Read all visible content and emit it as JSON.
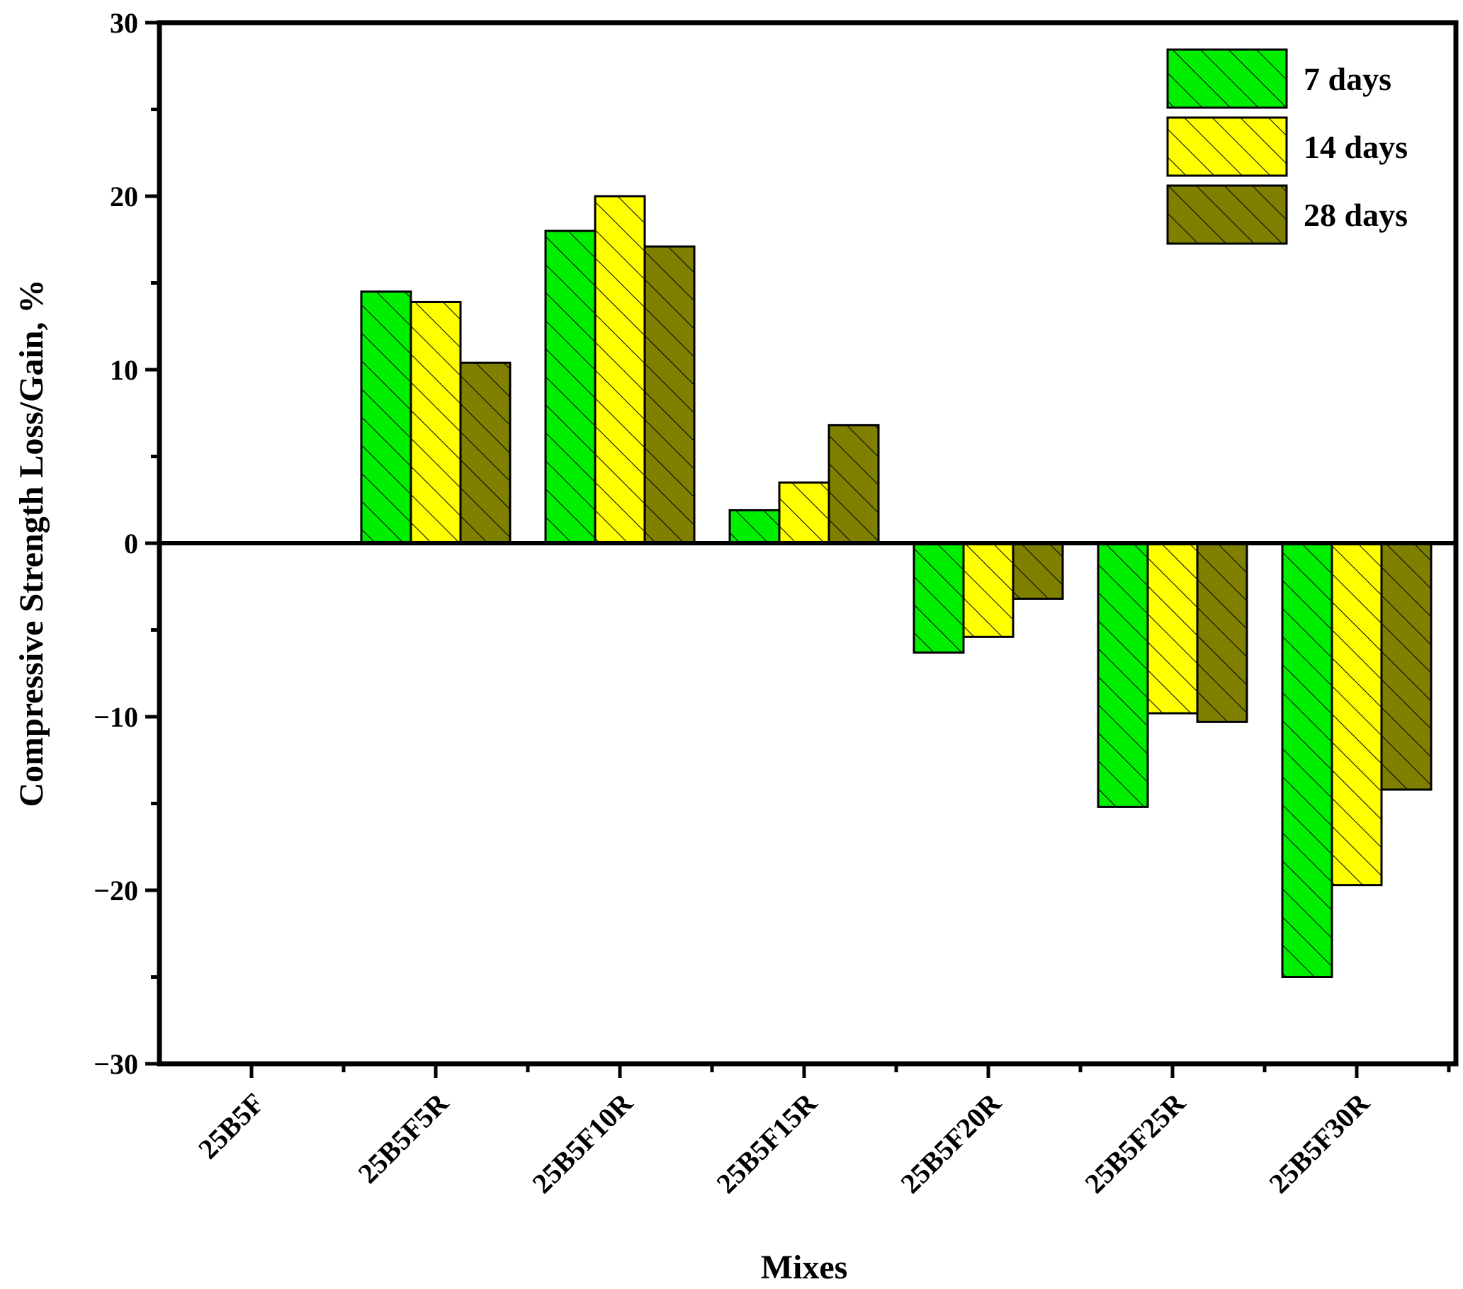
{
  "chart_data": {
    "type": "bar",
    "title": "",
    "xlabel": "Mixes",
    "ylabel": "Compressive Strength Loss/Gain, %",
    "ylim": [
      -30,
      30
    ],
    "yticks": [
      30,
      20,
      10,
      0,
      -10,
      -20,
      -30
    ],
    "ytick_labels": [
      "30",
      "20",
      "10",
      "0",
      "−10",
      "−20",
      "−30"
    ],
    "categories": [
      "25B5F",
      "25B5F5R",
      "25B5F10R",
      "25B5F15R",
      "25B5F20R",
      "25B5F25R",
      "25B5F30R"
    ],
    "series": [
      {
        "name": "7 days",
        "color": "#00ee00",
        "values": [
          0,
          14.5,
          18.0,
          1.9,
          -6.3,
          -15.2,
          -25.0
        ]
      },
      {
        "name": "14 days",
        "color": "#ffff00",
        "values": [
          0,
          13.9,
          20.0,
          3.5,
          -5.4,
          -9.8,
          -19.7
        ]
      },
      {
        "name": "28 days",
        "color": "#808000",
        "values": [
          0,
          10.4,
          17.1,
          6.8,
          -3.2,
          -10.3,
          -14.2
        ]
      }
    ],
    "bar_pattern": "diagonal-hatch",
    "legend_position": "top-right",
    "grid": false
  }
}
